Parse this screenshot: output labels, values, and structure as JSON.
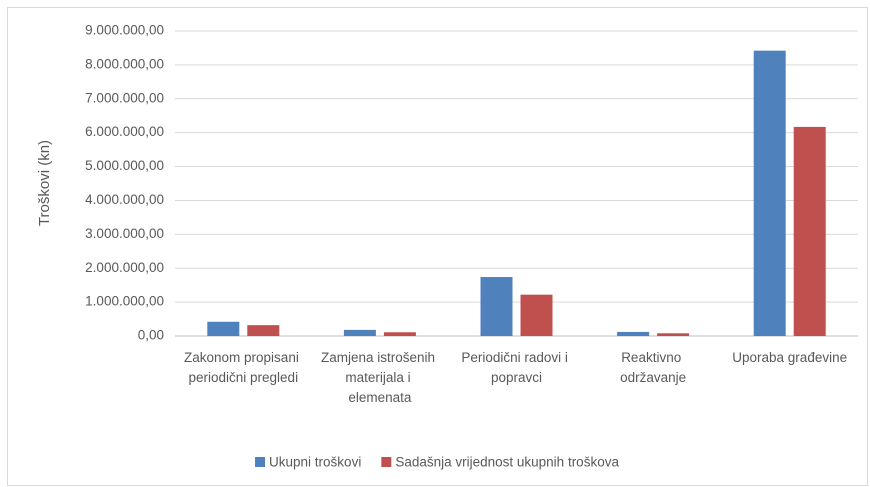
{
  "chart_data": {
    "type": "bar",
    "categories": [
      "Zakonom propisani periodični pregledi",
      "Zamjena istrošenih materijala i elemenata",
      "Periodični radovi i popravci",
      "Reaktivno održavanje",
      "Uporaba građevine"
    ],
    "series": [
      {
        "name": "Ukupni troškovi",
        "color": "#4f81bd",
        "values": [
          420000,
          180000,
          1740000,
          120000,
          8420000
        ]
      },
      {
        "name": "Sadašnja vrijednost ukupnih troškova",
        "color": "#c0504d",
        "values": [
          320000,
          110000,
          1220000,
          80000,
          6170000
        ]
      }
    ],
    "y_axis_label": "Troškovi (kn)",
    "ylim": [
      0,
      9000000
    ],
    "yticks": [
      {
        "value": 0,
        "label": "0,00"
      },
      {
        "value": 1000000,
        "label": "1.000.000,00"
      },
      {
        "value": 2000000,
        "label": "2.000.000,00"
      },
      {
        "value": 3000000,
        "label": "3.000.000,00"
      },
      {
        "value": 4000000,
        "label": "4.000.000,00"
      },
      {
        "value": 5000000,
        "label": "5.000.000,00"
      },
      {
        "value": 6000000,
        "label": "6.000.000,00"
      },
      {
        "value": 7000000,
        "label": "7.000.000,00"
      },
      {
        "value": 8000000,
        "label": "8.000.000,00"
      },
      {
        "value": 9000000,
        "label": "9.000.000,00"
      }
    ],
    "grid": true,
    "legend": "bottom"
  }
}
